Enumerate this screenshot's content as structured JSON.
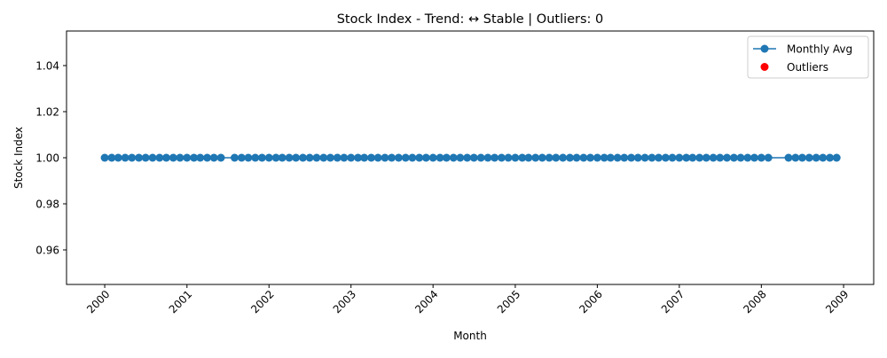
{
  "chart_data": {
    "type": "line",
    "title": "Stock Index - Trend: ↔ Stable | Outliers: 0",
    "xlabel": "Month",
    "ylabel": "Stock Index",
    "x_tick_labels": [
      "2000",
      "2001",
      "2002",
      "2003",
      "2004",
      "2005",
      "2006",
      "2007",
      "2008",
      "2009"
    ],
    "y_tick_labels": [
      "0.96",
      "0.98",
      "1.00",
      "1.02",
      "1.04"
    ],
    "y_ticks": [
      0.96,
      0.98,
      1.0,
      1.02,
      1.04
    ],
    "ylim": [
      0.945,
      1.055
    ],
    "xlim": [
      "1999-07-15",
      "2009-05-15"
    ],
    "grid": false,
    "legend": "top-right",
    "series": [
      {
        "name": "Monthly Avg",
        "color": "#1f77b4",
        "marker": "circle",
        "x": [
          "2000-01",
          "2000-02",
          "2000-03",
          "2000-04",
          "2000-05",
          "2000-06",
          "2000-07",
          "2000-08",
          "2000-09",
          "2000-10",
          "2000-11",
          "2000-12",
          "2001-01",
          "2001-02",
          "2001-03",
          "2001-04",
          "2001-05",
          "2001-06",
          "2001-08",
          "2001-09",
          "2001-10",
          "2001-11",
          "2001-12",
          "2002-01",
          "2002-02",
          "2002-03",
          "2002-04",
          "2002-05",
          "2002-06",
          "2002-07",
          "2002-08",
          "2002-09",
          "2002-10",
          "2002-11",
          "2002-12",
          "2003-01",
          "2003-02",
          "2003-03",
          "2003-04",
          "2003-05",
          "2003-06",
          "2003-07",
          "2003-08",
          "2003-09",
          "2003-10",
          "2003-11",
          "2003-12",
          "2004-01",
          "2004-02",
          "2004-03",
          "2004-04",
          "2004-05",
          "2004-06",
          "2004-07",
          "2004-08",
          "2004-09",
          "2004-10",
          "2004-11",
          "2004-12",
          "2005-01",
          "2005-02",
          "2005-03",
          "2005-04",
          "2005-05",
          "2005-06",
          "2005-07",
          "2005-08",
          "2005-09",
          "2005-10",
          "2005-11",
          "2005-12",
          "2006-01",
          "2006-02",
          "2006-03",
          "2006-04",
          "2006-05",
          "2006-06",
          "2006-07",
          "2006-08",
          "2006-09",
          "2006-10",
          "2006-11",
          "2006-12",
          "2007-01",
          "2007-02",
          "2007-03",
          "2007-04",
          "2007-05",
          "2007-06",
          "2007-07",
          "2007-08",
          "2007-09",
          "2007-10",
          "2007-11",
          "2007-12",
          "2008-01",
          "2008-02",
          "2008-05",
          "2008-06",
          "2008-07",
          "2008-08",
          "2008-09",
          "2008-10",
          "2008-11",
          "2008-12"
        ],
        "y_value": 1.0
      },
      {
        "name": "Outliers",
        "color": "#ff0000",
        "marker": "circle",
        "x": [],
        "y": []
      }
    ]
  }
}
